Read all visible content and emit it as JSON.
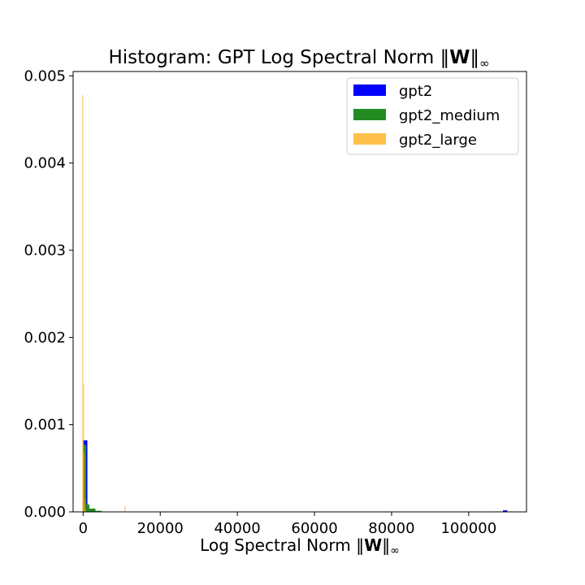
{
  "chart_data": {
    "type": "bar",
    "title": "Histogram: GPT Log Spectral Norm ‖W‖∞",
    "title_parts": {
      "prefix": "Histogram: GPT Log Spectral Norm ‖",
      "bold": "W",
      "suffix": "‖",
      "sub": "∞"
    },
    "xlabel": "Log Spectral Norm ‖W‖∞",
    "xlabel_parts": {
      "prefix": "Log Spectral Norm ‖",
      "bold": "W",
      "suffix": "‖",
      "sub": "∞"
    },
    "ylabel": "",
    "xlim": [
      -2600,
      115000
    ],
    "ylim": [
      0,
      0.00505
    ],
    "xticks": [
      0,
      20000,
      40000,
      60000,
      80000,
      100000
    ],
    "xtick_labels": [
      "0",
      "20000",
      "40000",
      "60000",
      "80000",
      "100000"
    ],
    "yticks": [
      0.0,
      0.001,
      0.002,
      0.003,
      0.004,
      0.005
    ],
    "ytick_labels": [
      "0.000",
      "0.001",
      "0.002",
      "0.003",
      "0.004",
      "0.005"
    ],
    "grid": false,
    "legend_position": "top-right",
    "series": [
      {
        "name": "gpt2",
        "color": "#0000ff",
        "opacity": 1,
        "bins": [
          {
            "x0": 0,
            "x1": 1100,
            "value": 0.00082
          },
          {
            "x0": 1100,
            "x1": 2200,
            "value": 5e-06
          },
          {
            "x0": 108900,
            "x1": 110000,
            "value": 1.8e-05
          }
        ]
      },
      {
        "name": "gpt2_medium",
        "color": "#228b22",
        "opacity": 1,
        "bins": [
          {
            "x0": 0,
            "x1": 800,
            "value": 0.00077
          },
          {
            "x0": 800,
            "x1": 1600,
            "value": 8.5e-05
          },
          {
            "x0": 1600,
            "x1": 3200,
            "value": 3.8e-05
          },
          {
            "x0": 3200,
            "x1": 4800,
            "value": 1.2e-05
          },
          {
            "x0": 106900,
            "x1": 108500,
            "value": 5e-06
          }
        ]
      },
      {
        "name": "gpt2_large",
        "color": "#ffa500",
        "opacity": 0.7,
        "bins": [
          {
            "x0": -200,
            "x1": 0,
            "value": 0.00478
          },
          {
            "x0": 0,
            "x1": 200,
            "value": 0.00147
          },
          {
            "x0": 200,
            "x1": 400,
            "value": 0.00068
          },
          {
            "x0": 400,
            "x1": 600,
            "value": 0.00015
          },
          {
            "x0": 600,
            "x1": 800,
            "value": 3e-05
          },
          {
            "x0": 10800,
            "x1": 11000,
            "value": 7e-05
          },
          {
            "x0": 108400,
            "x1": 108600,
            "value": 6e-06
          }
        ]
      }
    ]
  }
}
